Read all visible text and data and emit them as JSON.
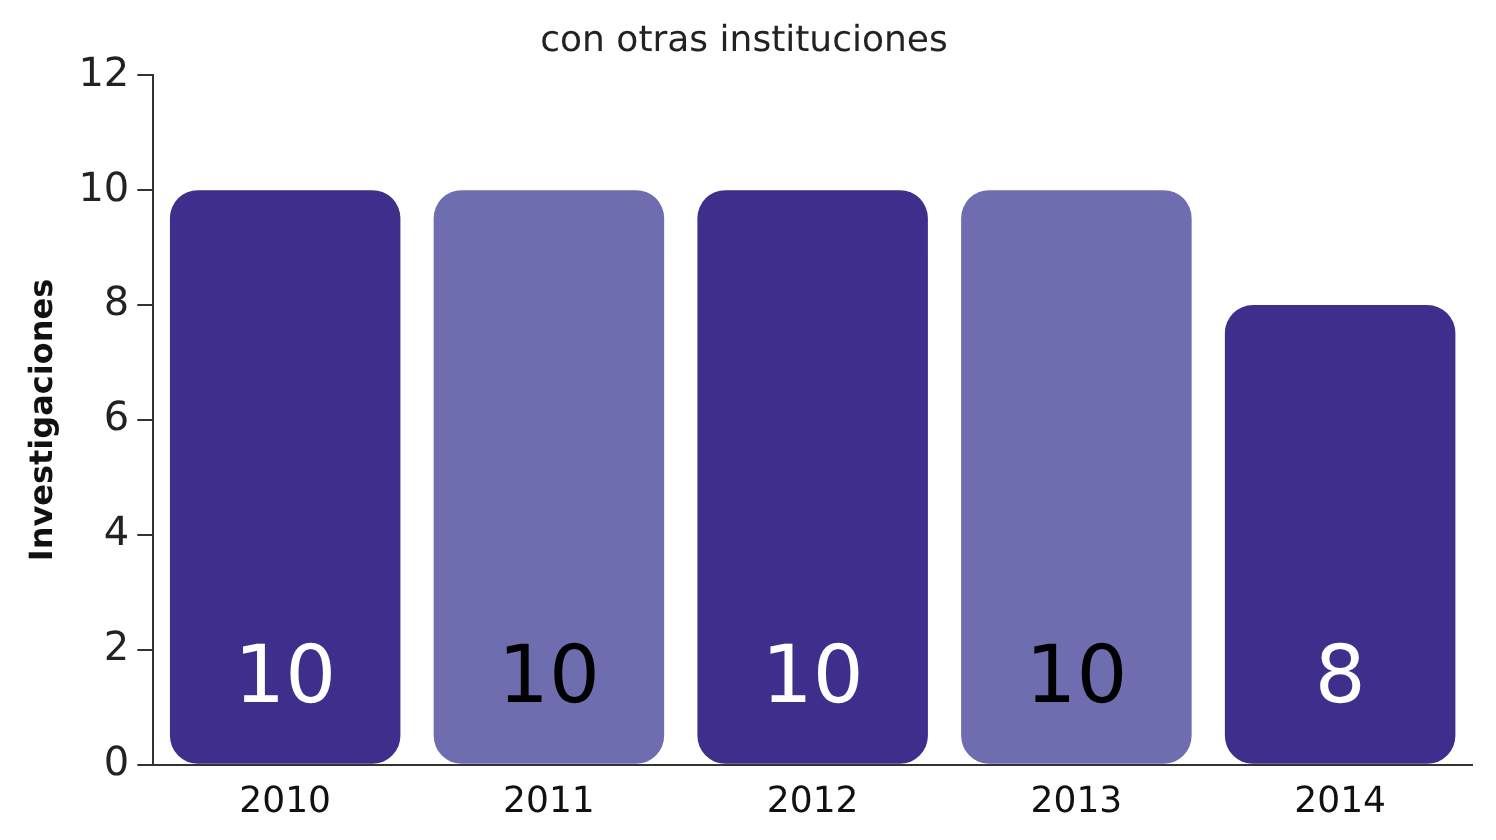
{
  "chart_data": {
    "type": "bar",
    "title": "con otras instituciones",
    "ylabel": "Investigaciones",
    "categories": [
      "2010",
      "2011",
      "2012",
      "2013",
      "2014"
    ],
    "values": [
      10,
      10,
      10,
      10,
      8
    ],
    "colors": [
      "#3f2e8c",
      "#6e6db0",
      "#3f2e8c",
      "#6e6db0",
      "#3f2e8c"
    ],
    "ylim": [
      0,
      12
    ],
    "yticks": [
      0,
      2,
      4,
      6,
      8,
      10,
      12
    ],
    "grid": false,
    "legend": false,
    "data_labels": true
  }
}
